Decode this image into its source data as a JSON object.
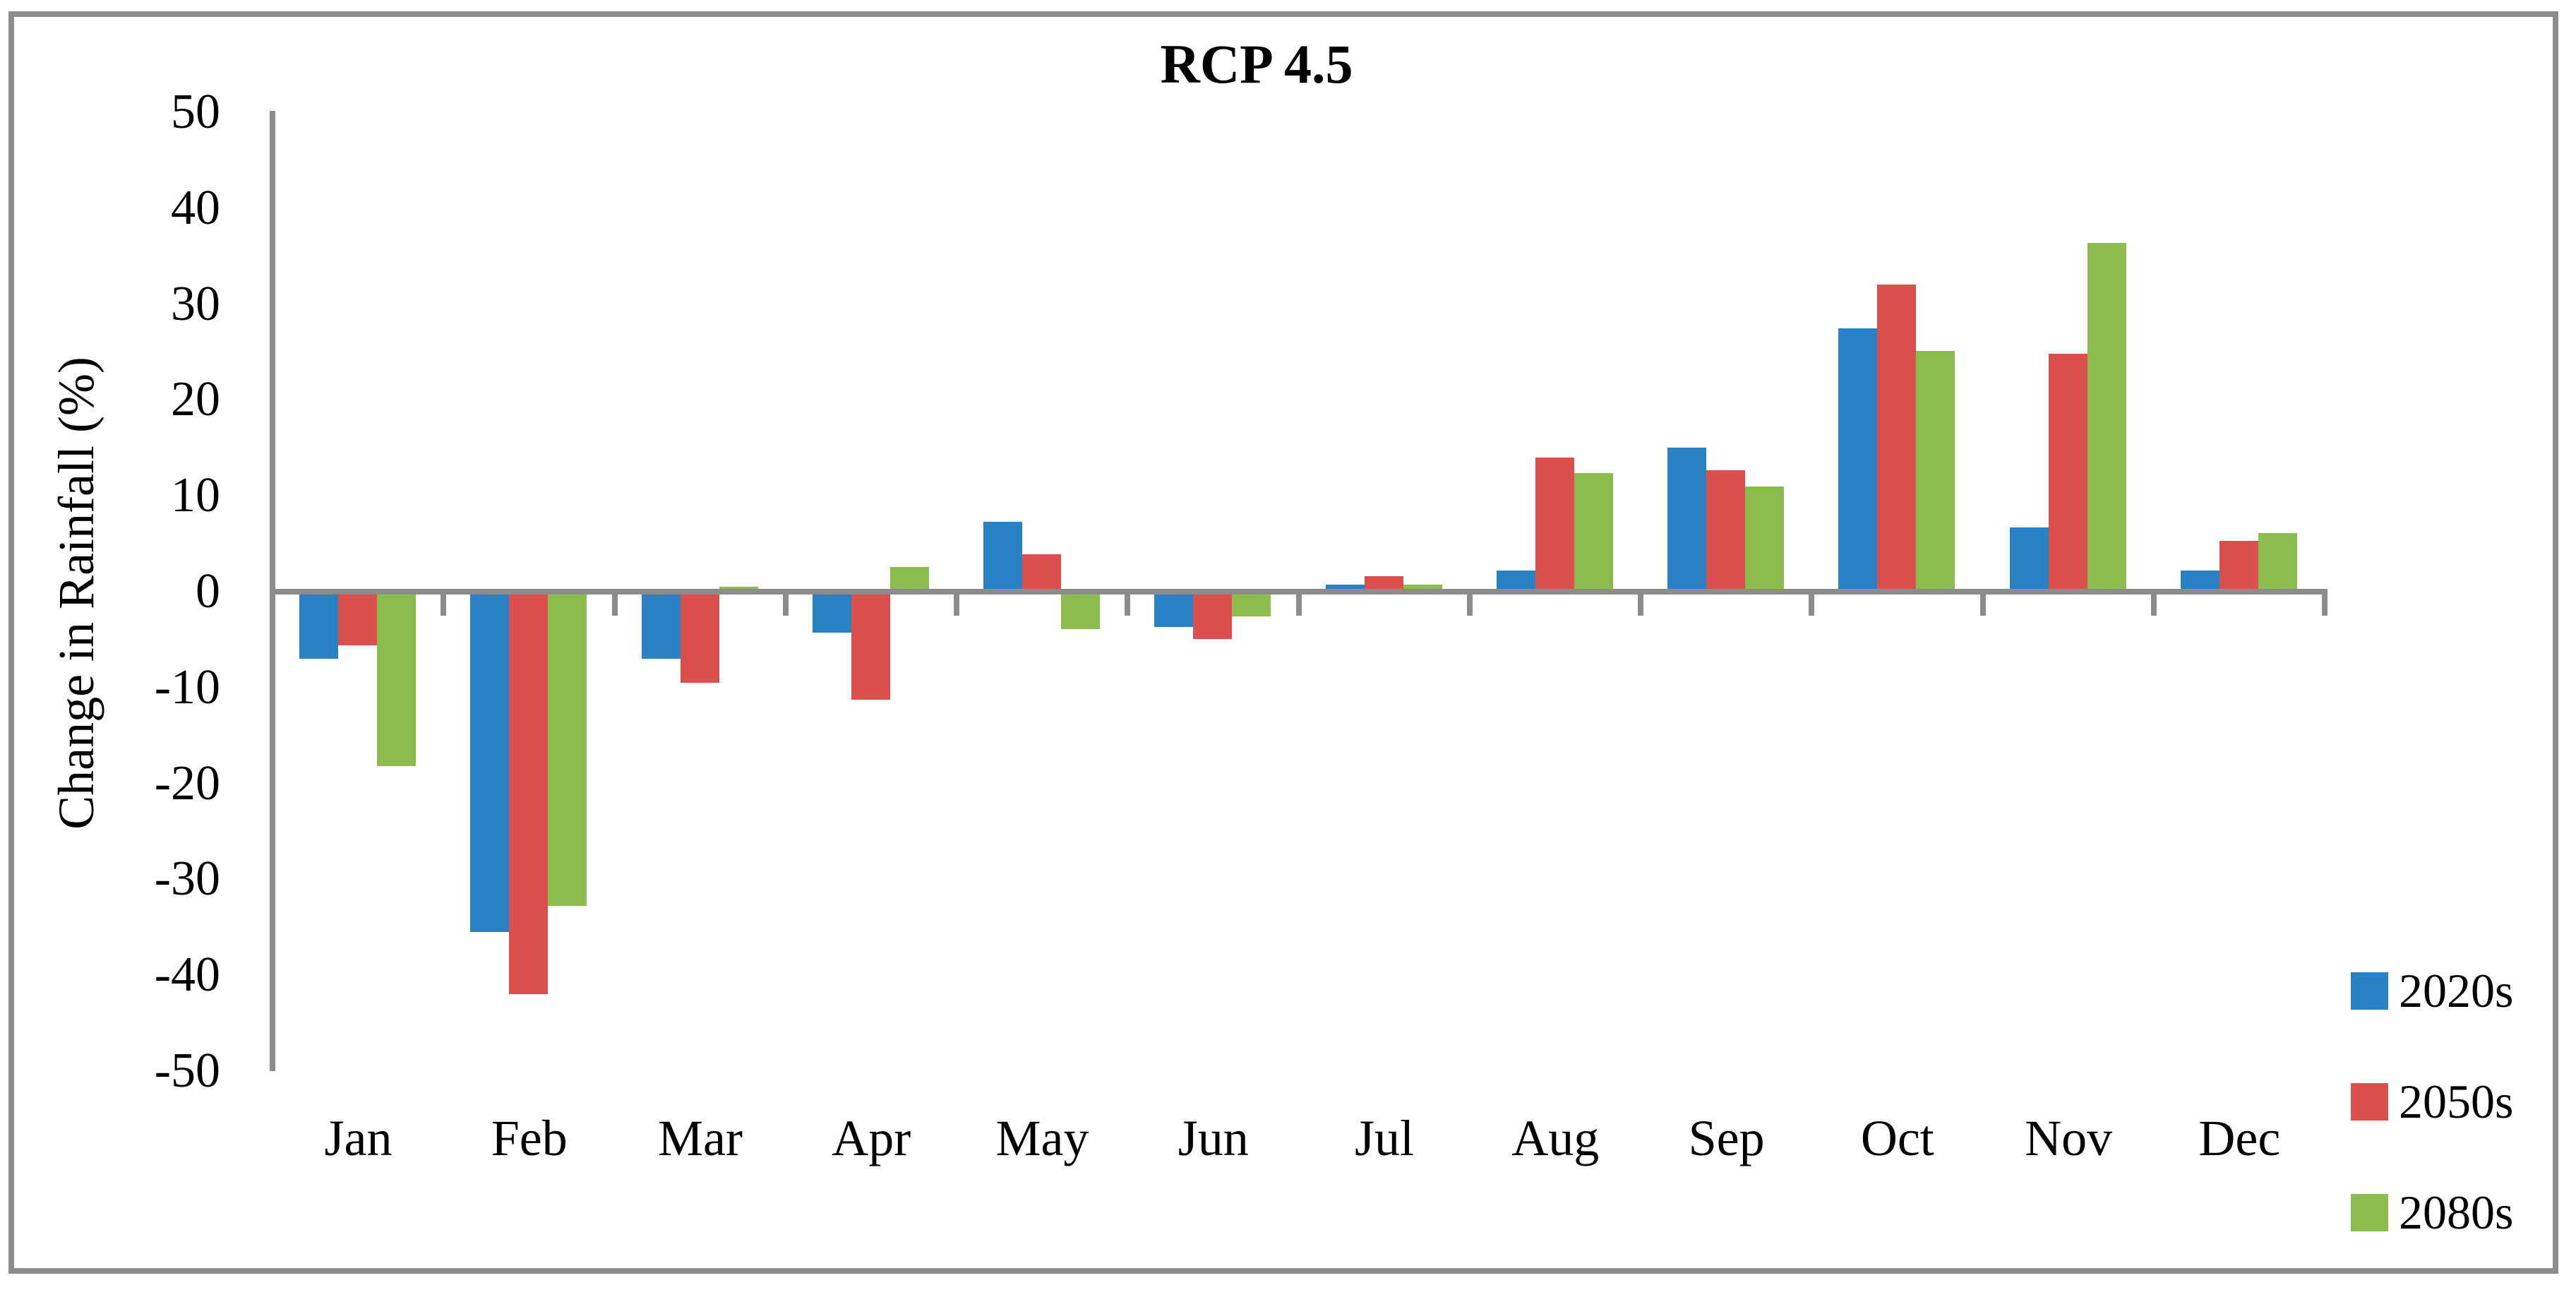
{
  "chart_data": {
    "type": "bar",
    "title": "RCP 4.5",
    "xlabel": "",
    "ylabel": "Change in Rainfall (%)",
    "categories": [
      "Jan",
      "Feb",
      "Mar",
      "Apr",
      "May",
      "Jun",
      "Jul",
      "Aug",
      "Sep",
      "Oct",
      "Nov",
      "Dec"
    ],
    "series": [
      {
        "name": "2020s",
        "color": "#2882C3",
        "values": [
          -7.0,
          -35.5,
          -7.0,
          -4.3,
          7.3,
          -3.7,
          0.7,
          2.2,
          15.0,
          27.5,
          6.7,
          2.2
        ]
      },
      {
        "name": "2050s",
        "color": "#DB504D",
        "values": [
          -5.6,
          -42.0,
          -9.5,
          -11.3,
          3.9,
          -4.9,
          1.6,
          14.0,
          12.7,
          32.0,
          24.8,
          5.3
        ]
      },
      {
        "name": "2080s",
        "color": "#8CBB4E",
        "values": [
          -18.2,
          -32.8,
          0.5,
          2.6,
          -3.9,
          -2.6,
          0.7,
          12.4,
          11.0,
          25.1,
          36.4,
          6.1
        ]
      }
    ],
    "ylim": [
      -50,
      50
    ],
    "ytick_step": 10,
    "ytick_labels": [
      "50",
      "40",
      "30",
      "20",
      "10",
      "0",
      "-10",
      "-20",
      "-30",
      "-40",
      "-50"
    ],
    "grid": "off",
    "legend_position": "right-bottom",
    "axis_color": "#8C8C8C",
    "border_color": "#8C8C8C",
    "background": "#FFFFFF"
  }
}
